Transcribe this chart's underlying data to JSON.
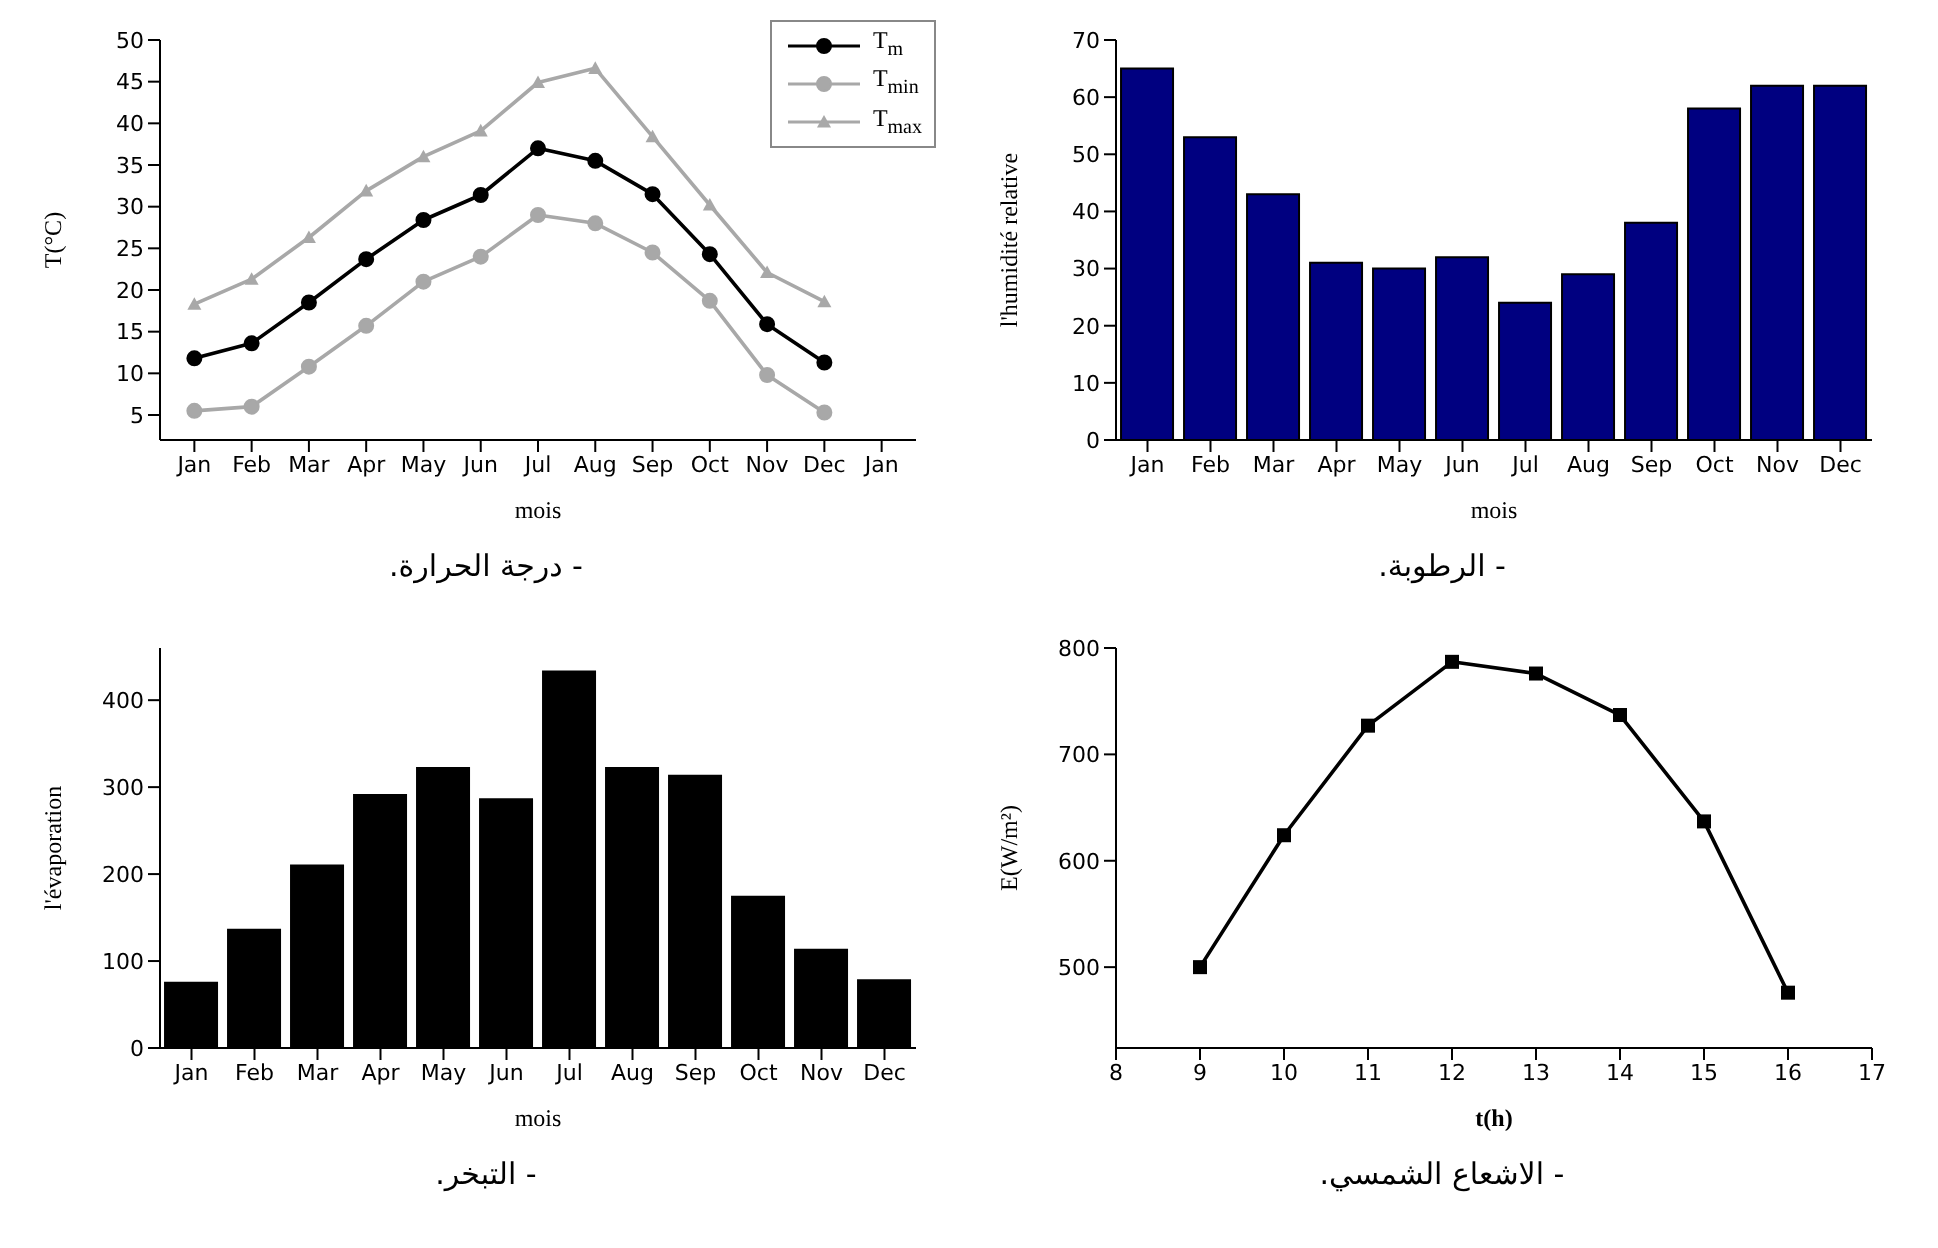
{
  "chart_data": [
    {
      "type": "line",
      "title": "- درجة الحرارة.",
      "xlabel": "mois",
      "ylabel": "T(°C)",
      "categories": [
        "Jan",
        "Feb",
        "Mar",
        "Apr",
        "May",
        "Jun",
        "Jul",
        "Aug",
        "Sep",
        "Oct",
        "Nov",
        "Dec",
        "Jan"
      ],
      "ylim": [
        2,
        50
      ],
      "yticks": [
        5,
        10,
        15,
        20,
        25,
        30,
        35,
        40,
        45,
        50
      ],
      "legend": "top right",
      "grid": false,
      "series": [
        {
          "name": "T$_{m}$",
          "color": "#000000",
          "marker": "circle",
          "values": [
            11.8,
            13.6,
            18.5,
            23.7,
            28.4,
            31.4,
            37,
            35.5,
            31.5,
            24.3,
            15.9,
            11.3,
            null
          ]
        },
        {
          "name": "T$_{min}$",
          "color": "#a8a8a8",
          "marker": "circle",
          "values": [
            5.5,
            6,
            10.8,
            15.7,
            21,
            24,
            29,
            28,
            24.5,
            18.7,
            9.8,
            5.3,
            null
          ]
        },
        {
          "name": "T$_{max}$",
          "color": "#a8a8a8",
          "marker": "triangle",
          "values": [
            18.3,
            21.3,
            26.3,
            31.9,
            36,
            39.1,
            44.9,
            46.6,
            38.4,
            30.2,
            22.1,
            18.6,
            null
          ]
        }
      ]
    },
    {
      "type": "bar",
      "title": "- الرطوبة.",
      "xlabel": "mois",
      "ylabel": "l'humidité relative",
      "categories": [
        "Jan",
        "Feb",
        "Mar",
        "Apr",
        "May",
        "Jun",
        "Jul",
        "Aug",
        "Sep",
        "Oct",
        "Nov",
        "Dec"
      ],
      "ylim": [
        0,
        70
      ],
      "yticks": [
        0,
        10,
        20,
        30,
        40,
        50,
        60,
        70
      ],
      "grid": false,
      "color": "#000080",
      "values": [
        65,
        53,
        43,
        31,
        30,
        32,
        24,
        29,
        38,
        58,
        62,
        62
      ]
    },
    {
      "type": "bar",
      "title": "- التبخر.",
      "xlabel": "mois",
      "ylabel": "l'évaporation",
      "categories": [
        "Jan",
        "Feb",
        "Mar",
        "Apr",
        "May",
        "Jun",
        "Jul",
        "Aug",
        "Sep",
        "Oct",
        "Nov",
        "Dec"
      ],
      "ylim": [
        0,
        460
      ],
      "yticks": [
        0,
        100,
        200,
        300,
        400
      ],
      "grid": false,
      "color": "#000000",
      "values": [
        75,
        136,
        210,
        291,
        322,
        286,
        433,
        322,
        313,
        174,
        113,
        78
      ]
    },
    {
      "type": "line",
      "title": "- الاشعاع الشمسي.",
      "xlabel": "t(h)",
      "ylabel": "E(W/m²)",
      "x": [
        9,
        10,
        11,
        12,
        13,
        14,
        15,
        16
      ],
      "xlim": [
        8,
        17
      ],
      "xticks": [
        8,
        9,
        10,
        11,
        12,
        13,
        14,
        15,
        16,
        17
      ],
      "ylim": [
        424,
        800
      ],
      "yticks": [
        500,
        600,
        700,
        800
      ],
      "grid": false,
      "marker": "square",
      "color": "#000000",
      "values": [
        500,
        624,
        727,
        787,
        776,
        737,
        637,
        476
      ]
    }
  ]
}
